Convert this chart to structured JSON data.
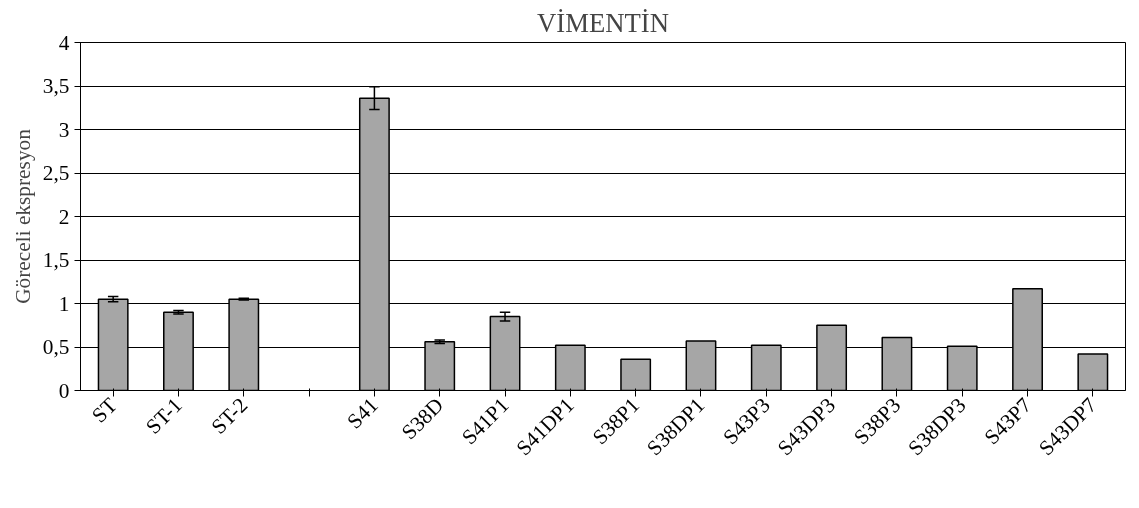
{
  "chart_data": {
    "type": "bar",
    "title": "VİMENTİN",
    "ylabel": "Göreceli ekspresyon",
    "categories": [
      "ST",
      "ST-1",
      "ST-2",
      null,
      "S41",
      "S38D",
      "S41P1",
      "S41DP1",
      "S38P1",
      "S38DP1",
      "S43P3",
      "S43DP3",
      "S38P3",
      "S38DP3",
      "S43P7",
      "S43DP7"
    ],
    "values": [
      1.05,
      0.9,
      1.05,
      null,
      3.36,
      0.56,
      0.85,
      0.52,
      0.36,
      0.57,
      0.52,
      0.75,
      0.61,
      0.51,
      1.17,
      0.42
    ],
    "errors": [
      0.03,
      0.02,
      0.01,
      null,
      0.13,
      0.02,
      0.05,
      null,
      null,
      null,
      null,
      null,
      null,
      null,
      null,
      null
    ],
    "color": "#a6a6a6",
    "ylim": [
      0,
      4
    ],
    "yticks": [
      0,
      {
        "value": 0.5,
        "label": "0,5"
      },
      1,
      {
        "value": 1.5,
        "label": "1,5"
      },
      2,
      {
        "value": 2.5,
        "label": "2,5"
      },
      3,
      {
        "value": 3.5,
        "label": "3,5"
      },
      4
    ],
    "grid": "y"
  }
}
